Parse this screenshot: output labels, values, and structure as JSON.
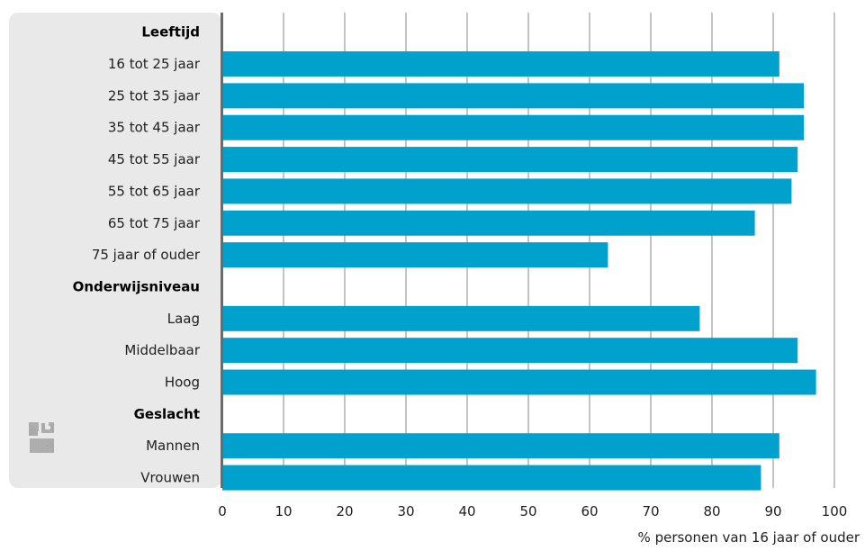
{
  "chart_data": {
    "type": "bar",
    "orientation": "horizontal",
    "xlabel": "% personen van 16 jaar of ouder",
    "xlim": [
      0,
      100
    ],
    "xticks": [
      0,
      10,
      20,
      30,
      40,
      50,
      60,
      70,
      80,
      90,
      100
    ],
    "grid": "vertical",
    "bar_color": "#00a1cd",
    "panel_color": "#e9e9e9",
    "rows": [
      {
        "label": "Leeftijd",
        "group": true
      },
      {
        "label": "16 tot 25 jaar",
        "value": 91
      },
      {
        "label": "25 tot 35 jaar",
        "value": 95
      },
      {
        "label": "35 tot 45 jaar",
        "value": 95
      },
      {
        "label": "45 tot 55 jaar",
        "value": 94
      },
      {
        "label": "55 tot 65 jaar",
        "value": 93
      },
      {
        "label": "65 tot 75 jaar",
        "value": 87
      },
      {
        "label": "75 jaar of ouder",
        "value": 63
      },
      {
        "label": "Onderwijsniveau",
        "group": true
      },
      {
        "label": "Laag",
        "value": 78
      },
      {
        "label": "Middelbaar",
        "value": 94
      },
      {
        "label": "Hoog",
        "value": 97
      },
      {
        "label": "Geslacht",
        "group": true
      },
      {
        "label": "Mannen",
        "value": 91
      },
      {
        "label": "Vrouwen",
        "value": 88
      }
    ]
  },
  "logo": {
    "icon": "cbs-logo-icon"
  }
}
